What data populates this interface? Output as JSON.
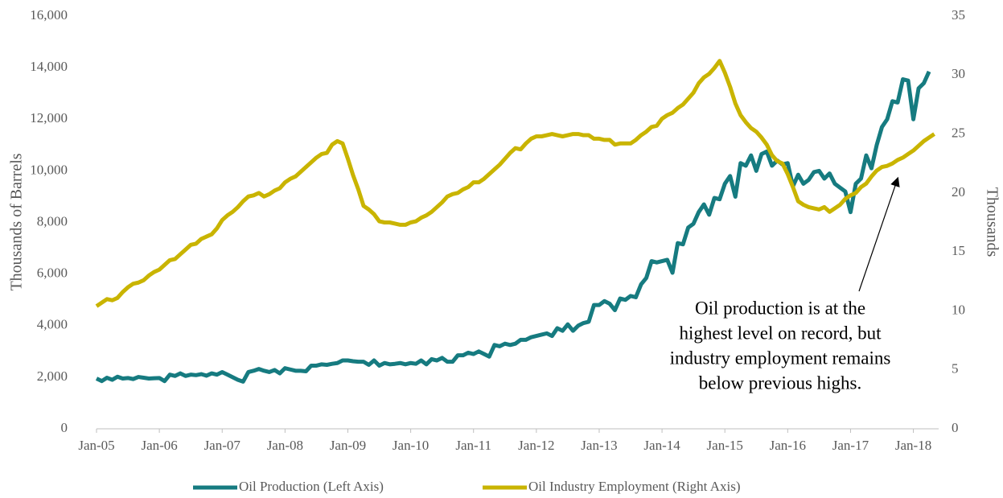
{
  "chart_data": {
    "type": "line",
    "categories": [
      "Jan-05",
      null,
      null,
      null,
      null,
      null,
      null,
      null,
      null,
      null,
      null,
      null,
      "Jan-06",
      null,
      null,
      null,
      null,
      null,
      null,
      null,
      null,
      null,
      null,
      null,
      "Jan-07",
      null,
      null,
      null,
      null,
      null,
      null,
      null,
      null,
      null,
      null,
      null,
      "Jan-08",
      null,
      null,
      null,
      null,
      null,
      null,
      null,
      null,
      null,
      null,
      null,
      "Jan-09",
      null,
      null,
      null,
      null,
      null,
      null,
      null,
      null,
      null,
      null,
      null,
      "Jan-10",
      null,
      null,
      null,
      null,
      null,
      null,
      null,
      null,
      null,
      null,
      null,
      "Jan-11",
      null,
      null,
      null,
      null,
      null,
      null,
      null,
      null,
      null,
      null,
      null,
      "Jan-12",
      null,
      null,
      null,
      null,
      null,
      null,
      null,
      null,
      null,
      null,
      null,
      "Jan-13",
      null,
      null,
      null,
      null,
      null,
      null,
      null,
      null,
      null,
      null,
      null,
      "Jan-14",
      null,
      null,
      null,
      null,
      null,
      null,
      null,
      null,
      null,
      null,
      null,
      "Jan-15",
      null,
      null,
      null,
      null,
      null,
      null,
      null,
      null,
      null,
      null,
      null,
      "Jan-16",
      null,
      null,
      null,
      null,
      null,
      null,
      null,
      null,
      null,
      null,
      null,
      "Jan-17",
      null,
      null,
      null,
      null,
      null,
      null,
      null,
      null,
      null,
      null,
      null,
      "Jan-18",
      null,
      null,
      null,
      null
    ],
    "series": [
      {
        "name": "Oil Production (Left Axis)",
        "color": "#167b80",
        "axis": "y",
        "values": [
          1950,
          1850,
          1980,
          1900,
          2020,
          1950,
          1970,
          1930,
          2010,
          1980,
          1950,
          1960,
          1970,
          1850,
          2100,
          2050,
          2150,
          2050,
          2100,
          2080,
          2120,
          2060,
          2150,
          2100,
          2200,
          2100,
          2000,
          1900,
          1830,
          2200,
          2250,
          2320,
          2250,
          2200,
          2280,
          2150,
          2350,
          2300,
          2250,
          2250,
          2230,
          2450,
          2450,
          2500,
          2480,
          2520,
          2550,
          2650,
          2650,
          2620,
          2600,
          2600,
          2480,
          2650,
          2450,
          2550,
          2500,
          2520,
          2550,
          2500,
          2550,
          2520,
          2650,
          2500,
          2700,
          2650,
          2750,
          2600,
          2600,
          2850,
          2850,
          2950,
          2900,
          3000,
          2900,
          2800,
          3250,
          3200,
          3300,
          3250,
          3300,
          3450,
          3450,
          3550,
          3600,
          3650,
          3700,
          3600,
          3900,
          3800,
          4050,
          3800,
          4000,
          4100,
          4150,
          4800,
          4800,
          4950,
          4850,
          4600,
          5050,
          5000,
          5150,
          5100,
          5600,
          5850,
          6500,
          6450,
          6500,
          6550,
          6050,
          7200,
          7150,
          7800,
          7950,
          8400,
          8700,
          8300,
          8950,
          8900,
          9500,
          9800,
          9000,
          10300,
          10200,
          10600,
          10000,
          10650,
          10750,
          10200,
          10400,
          10250,
          10300,
          9400,
          9850,
          9500,
          9650,
          9950,
          10000,
          9700,
          9900,
          9500,
          9350,
          9200,
          8400,
          9500,
          9700,
          10600,
          10100,
          11000,
          11700,
          12000,
          12700,
          12650,
          13550,
          13500,
          12000,
          13200,
          13400,
          13850,
          null
        ]
      },
      {
        "name": "Oil Industry Employment (Right Axis)",
        "color": "#c9b400",
        "axis": "y2",
        "values": [
          10.4,
          10.7,
          11.0,
          10.9,
          11.1,
          11.6,
          12.0,
          12.3,
          12.4,
          12.6,
          13.0,
          13.3,
          13.5,
          13.9,
          14.3,
          14.4,
          14.8,
          15.2,
          15.6,
          15.7,
          16.1,
          16.3,
          16.5,
          17.0,
          17.7,
          18.1,
          18.4,
          18.8,
          19.3,
          19.7,
          19.8,
          20.0,
          19.7,
          19.9,
          20.2,
          20.4,
          20.9,
          21.2,
          21.4,
          21.8,
          22.2,
          22.6,
          23.0,
          23.3,
          23.4,
          24.1,
          24.4,
          24.2,
          22.9,
          21.5,
          20.3,
          18.9,
          18.6,
          18.2,
          17.6,
          17.5,
          17.5,
          17.4,
          17.3,
          17.3,
          17.5,
          17.6,
          17.9,
          18.1,
          18.4,
          18.8,
          19.2,
          19.7,
          19.9,
          20.0,
          20.3,
          20.5,
          20.9,
          20.9,
          21.2,
          21.6,
          22.0,
          22.4,
          22.9,
          23.4,
          23.8,
          23.7,
          24.2,
          24.6,
          24.8,
          24.8,
          24.9,
          25.0,
          24.9,
          24.8,
          24.9,
          25.0,
          25.0,
          24.9,
          24.9,
          24.6,
          24.6,
          24.5,
          24.5,
          24.1,
          24.2,
          24.2,
          24.2,
          24.5,
          24.9,
          25.2,
          25.6,
          25.7,
          26.3,
          26.6,
          26.8,
          27.2,
          27.5,
          28.0,
          28.5,
          29.3,
          29.8,
          30.1,
          30.6,
          31.2,
          30.2,
          29.0,
          27.6,
          26.6,
          26.0,
          25.5,
          25.2,
          24.7,
          24.1,
          23.2,
          22.7,
          22.5,
          21.6,
          20.5,
          19.3,
          19.0,
          18.8,
          18.7,
          18.6,
          18.8,
          18.4,
          18.7,
          19.0,
          19.5,
          19.8,
          20.0,
          20.5,
          20.8,
          21.4,
          21.9,
          22.2,
          22.3,
          22.5,
          22.8,
          23.0,
          23.3,
          23.6,
          24.0,
          24.4,
          24.7,
          25.0
        ]
      }
    ],
    "ylabel": "Thousands of Barrels",
    "y2label": "Thousands",
    "ylim": [
      0,
      16000
    ],
    "yticks": [
      0,
      {
        "value": 2000,
        "label": "2,000"
      },
      {
        "value": 4000,
        "label": "4,000"
      },
      {
        "value": 6000,
        "label": "6,000"
      },
      {
        "value": 8000,
        "label": "8,000"
      },
      {
        "value": 10000,
        "label": "10,000"
      },
      {
        "value": 12000,
        "label": "12,000"
      },
      {
        "value": 14000,
        "label": "14,000"
      },
      {
        "value": 16000,
        "label": "16,000"
      }
    ],
    "y2lim": [
      0,
      35
    ],
    "y2ticks": [
      0,
      5,
      10,
      15,
      20,
      25,
      30,
      35
    ],
    "annotation": [
      "Oil production is at the",
      "highest level on record, but",
      "industry employment remains",
      "below previous highs."
    ],
    "legend": "bottom",
    "grid": false
  }
}
